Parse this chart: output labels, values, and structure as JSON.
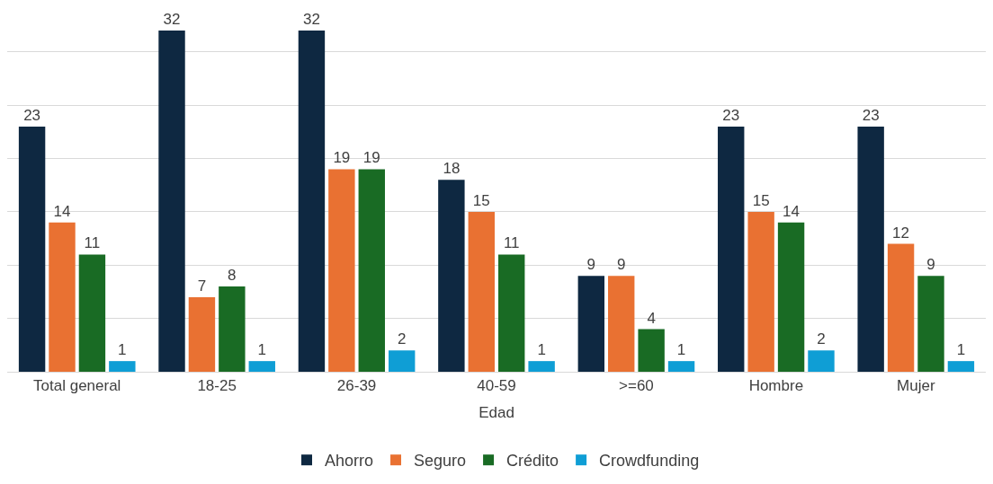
{
  "chart_data": {
    "type": "bar",
    "xlabel": "Edad",
    "categories": [
      "Total general",
      "18-25",
      "26-39",
      "40-59",
      ">=60",
      "Hombre",
      "Mujer"
    ],
    "series": [
      {
        "name": "Ahorro",
        "color": "#0e2841",
        "values": [
          23,
          32,
          32,
          18,
          9,
          23,
          23
        ]
      },
      {
        "name": "Seguro",
        "color": "#e97132",
        "values": [
          14,
          7,
          19,
          15,
          9,
          15,
          12
        ]
      },
      {
        "name": "Crédito",
        "color": "#196b24",
        "values": [
          11,
          8,
          19,
          11,
          4,
          14,
          9
        ]
      },
      {
        "name": "Crowdfunding",
        "color": "#0f9ed5",
        "values": [
          1,
          1,
          2,
          1,
          1,
          2,
          1
        ]
      }
    ],
    "grid": "y",
    "tick_labels": "x",
    "data_labels": true,
    "legend": "bottom"
  }
}
